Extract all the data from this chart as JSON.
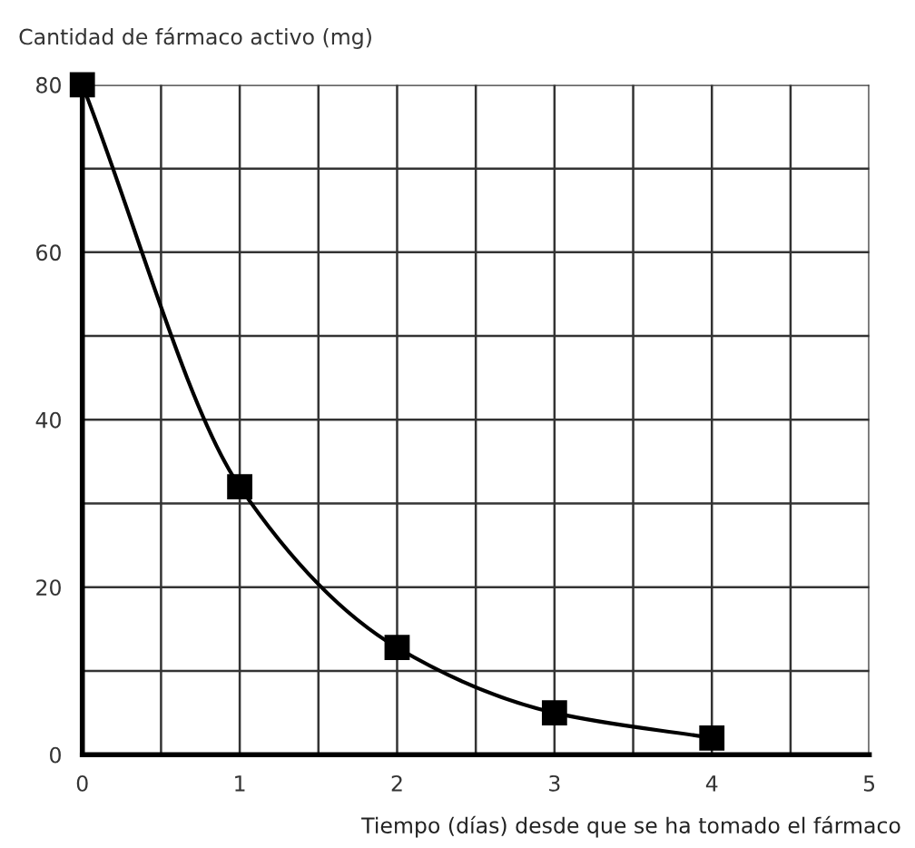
{
  "chart_data": {
    "type": "line",
    "ylabel": "Cantidad de fármaco activo (mg)",
    "xlabel": "Tiempo (días) desde que se ha tomado el fármaco",
    "x": [
      0,
      1,
      2,
      3,
      4
    ],
    "series": [
      {
        "color": "#000000",
        "values": [
          80,
          32,
          12.8,
          5,
          2
        ]
      }
    ],
    "marker": "square",
    "grid": true,
    "xlim": [
      0,
      5
    ],
    "ylim": [
      0,
      80
    ],
    "xticks": [
      0,
      {
        "value": 0.5,
        "label": null
      },
      1,
      {
        "value": 1.5,
        "label": null
      },
      2,
      {
        "value": 2.5,
        "label": null
      },
      3,
      {
        "value": 3.5,
        "label": null
      },
      4,
      {
        "value": 4.5,
        "label": null
      },
      5
    ],
    "yticks": [
      0,
      {
        "value": 10,
        "label": null
      },
      20,
      {
        "value": 30,
        "label": null
      },
      40,
      {
        "value": 50,
        "label": null
      },
      60,
      {
        "value": 70,
        "label": null
      },
      80
    ]
  }
}
